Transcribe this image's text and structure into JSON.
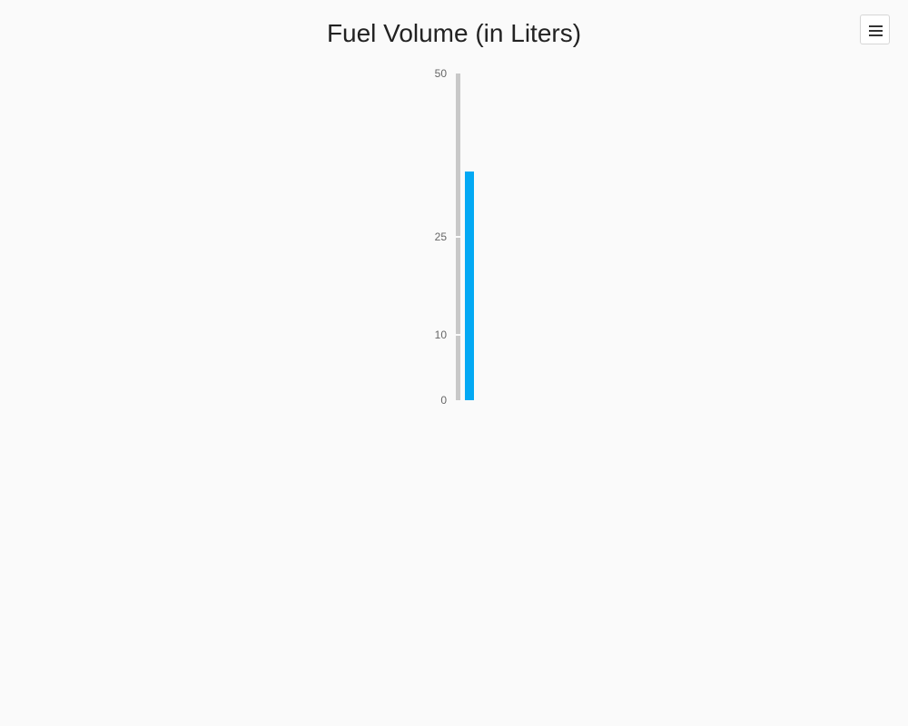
{
  "chart_data": {
    "type": "bar",
    "title": "Fuel Volume (in Liters)",
    "orientation": "vertical-linear-gauge",
    "scale": {
      "min": 0,
      "max": 50,
      "ticks": [
        0,
        10,
        25,
        50
      ],
      "tick_labels": [
        "0",
        "10",
        "25",
        "50"
      ]
    },
    "value": 35,
    "colors": {
      "bar": "#03a9f4",
      "track": "#c8c8c8",
      "tick_text": "#666666",
      "title": "#222222"
    }
  },
  "toolbar": {
    "menu_icon": "hamburger-menu-icon"
  }
}
